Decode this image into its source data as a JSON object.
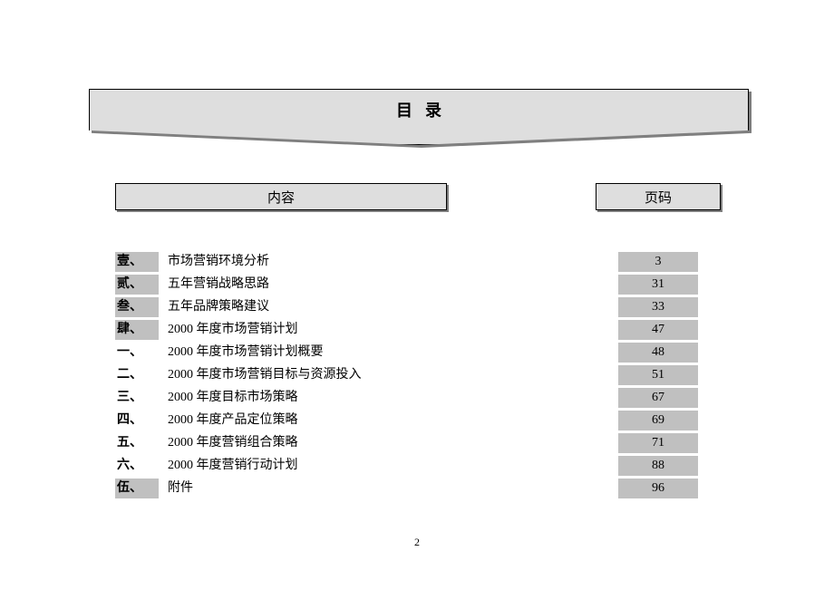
{
  "title": "目录",
  "headers": {
    "content": "内容",
    "page": "页码"
  },
  "rows": [
    {
      "num": "壹、",
      "title": "市场营销环境分析",
      "page": "3",
      "shaded": true
    },
    {
      "num": "贰、",
      "title": "五年营销战略思路",
      "page": "31",
      "shaded": true
    },
    {
      "num": "叁、",
      "title": "五年品牌策略建议",
      "page": "33",
      "shaded": true
    },
    {
      "num": "肆、",
      "title": "2000 年度市场营销计划",
      "page": "47",
      "shaded": true
    },
    {
      "num": "一、",
      "title": "2000 年度市场营销计划概要",
      "page": "48",
      "shaded": false
    },
    {
      "num": "二、",
      "title": "2000 年度市场营销目标与资源投入",
      "page": "51",
      "shaded": false
    },
    {
      "num": "三、",
      "title": "2000 年度目标市场策略",
      "page": "67",
      "shaded": false
    },
    {
      "num": "四、",
      "title": "2000 年度产品定位策略",
      "page": "69",
      "shaded": false
    },
    {
      "num": "五、",
      "title": "2000 年度营销组合策略",
      "page": "71",
      "shaded": false
    },
    {
      "num": "六、",
      "title": "2000 年度营销行动计划",
      "page": "88",
      "shaded": false
    },
    {
      "num": "伍、",
      "title": "附件",
      "page": "96",
      "shaded": true
    }
  ],
  "page_number": "2"
}
